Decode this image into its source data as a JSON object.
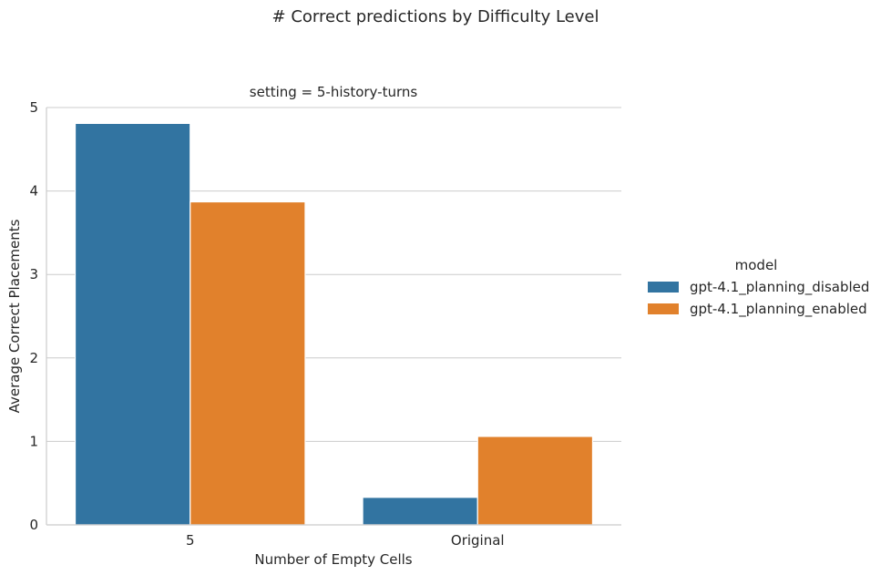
{
  "chart_data": {
    "type": "bar",
    "title": "# Correct predictions by Difficulty Level",
    "subtitle": "setting = 5-history-turns",
    "xlabel": "Number of Empty Cells",
    "ylabel": "Average Correct Placements",
    "categories": [
      "5",
      "Original"
    ],
    "ylim": [
      0,
      5
    ],
    "yticks": [
      0,
      1,
      2,
      3,
      4,
      5
    ],
    "grid": true,
    "legend": {
      "title": "model",
      "placement": "right"
    },
    "series": [
      {
        "name": "gpt-4.1_planning_disabled",
        "values": [
          4.81,
          0.33
        ],
        "color": "#3274a1"
      },
      {
        "name": "gpt-4.1_planning_enabled",
        "values": [
          3.87,
          1.06
        ],
        "color": "#e1812c"
      }
    ]
  }
}
